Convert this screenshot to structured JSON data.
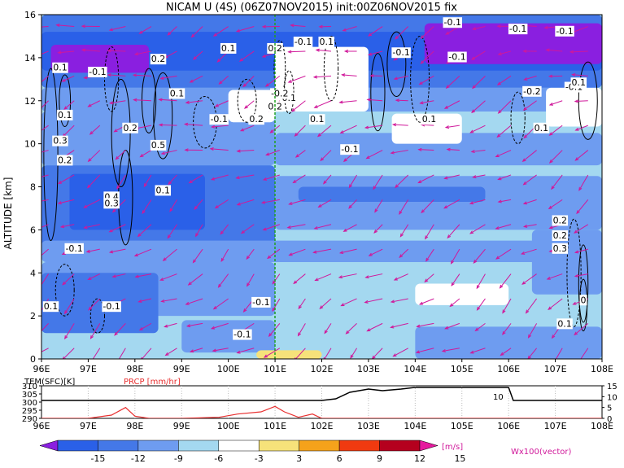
{
  "title": "NICAM U (4S) (06Z07NOV2015) init:00Z06NOV2015 fix",
  "main_panel": {
    "ylabel": "ALTITUDE [km]",
    "y_ticks": [
      "0",
      "2",
      "4",
      "6",
      "8",
      "10",
      "12",
      "14",
      "16"
    ],
    "x_ticks": [
      "96E",
      "97E",
      "98E",
      "99E",
      "100E",
      "101E",
      "102E",
      "103E",
      "104E",
      "105E",
      "106E",
      "107E",
      "108E"
    ],
    "contour_labels": [
      "0.1",
      "-0.1",
      "0.1",
      "-0.1",
      "-0.1",
      "0.2",
      "-0.1",
      "0.1",
      "0.2",
      "-0.1",
      "0.2",
      "0.1",
      "-0.1",
      "0.2",
      "0.1",
      "0.3",
      "0.1",
      "0.5",
      "0.2",
      "0.4",
      "0.3",
      "0.1",
      "-0.1",
      "0.1",
      "-0.1",
      "0.2",
      "-0.1",
      "-0.1",
      "0.1",
      "-0.2",
      "0.1",
      "-0.1",
      "0.2",
      "-0.1",
      "-0.2",
      "-0.1",
      "0.1",
      "0.2",
      "0.3",
      "0.1",
      "0",
      "0.1",
      "-0.1"
    ],
    "marker_line_label": "101E"
  },
  "bottom_panel": {
    "left_label_1": "TEM(SFC)[K]",
    "left_label_2": "PRCP [mm/hr]",
    "left_ticks": [
      "310",
      "305",
      "300",
      "295",
      "290"
    ],
    "right_ticks": [
      "15",
      "10",
      "5",
      "0"
    ],
    "inline_label": "10",
    "x_ticks": [
      "96E",
      "97E",
      "98E",
      "99E",
      "100E",
      "101E",
      "102E",
      "103E",
      "104E",
      "105E",
      "106E",
      "107E",
      "108E"
    ]
  },
  "colorbar": {
    "tick_labels": [
      "-15",
      "-12",
      "-9",
      "-6",
      "-3",
      "3",
      "6",
      "9",
      "12",
      "15"
    ],
    "units": "[m/s]",
    "vector_note": "Wx100(vector)"
  },
  "colors": {
    "vector": "#d0189a",
    "precip": "#e83030",
    "marker": "#20a020",
    "bins": [
      "#8a1fe0",
      "#2a60e8",
      "#4478e8",
      "#6e9cf0",
      "#a4d8f0",
      "#ffffff",
      "#f6e27a",
      "#f5a21b",
      "#f03a10",
      "#b5001e",
      "#e51a9e"
    ]
  },
  "chart_data": {
    "type": "heatmap",
    "variable": "U",
    "xlabel": "",
    "ylabel": "ALTITUDE [km]",
    "xlim": [
      96,
      108
    ],
    "ylim": [
      0,
      16
    ],
    "color_bins_ms": [
      -15,
      -12,
      -9,
      -6,
      -3,
      3,
      6,
      9,
      12,
      15
    ],
    "marker_line_x": 101,
    "surface_temperature_K": {
      "x": [
        96,
        97,
        98,
        99,
        100,
        101,
        102,
        102.3,
        102.6,
        103,
        103.3,
        103.7,
        104,
        105,
        106,
        106.1,
        107,
        108
      ],
      "y": [
        301,
        301,
        301,
        301,
        301,
        301,
        301,
        302,
        306,
        308,
        307,
        308,
        309,
        309,
        309,
        301,
        301,
        301
      ]
    },
    "precip_mm_hr": {
      "x": [
        96,
        97,
        97.5,
        97.8,
        98,
        98.3,
        99,
        99.8,
        100.2,
        100.7,
        101,
        101.2,
        101.5,
        101.8,
        102,
        103,
        104,
        105,
        106,
        107,
        108
      ],
      "y": [
        0,
        0,
        1.5,
        5,
        1,
        0,
        0,
        0.5,
        2,
        3,
        5.5,
        3,
        0.5,
        2,
        0,
        0,
        0,
        0,
        0,
        0,
        0
      ]
    }
  }
}
